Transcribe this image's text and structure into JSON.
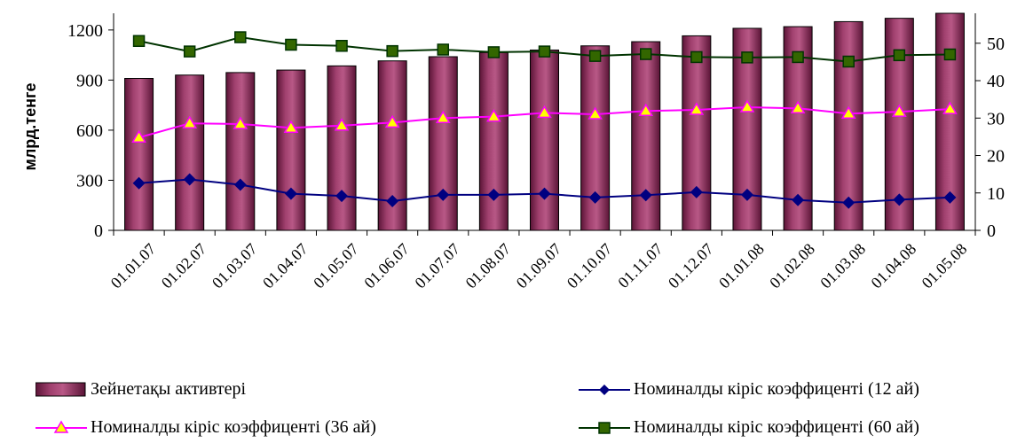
{
  "chart_data": {
    "type": "bar",
    "ylabel": "млрд.тенге",
    "categories": [
      "01.01.07",
      "01.02.07",
      "01.03.07",
      "01.04.07",
      "01.05.07",
      "01.06.07",
      "01.07.07",
      "01.08.07",
      "01.09.07",
      "01.10.07",
      "01.11.07",
      "01.12.07",
      "01.01.08",
      "01.02.08",
      "01.03.08",
      "01.04.08",
      "01.05.08"
    ],
    "ylim": [
      0,
      1300
    ],
    "yticks": [
      0,
      300,
      600,
      900,
      1200
    ],
    "y2lim": [
      0,
      58
    ],
    "y2ticks": [
      0,
      10,
      20,
      30,
      40,
      50
    ],
    "grid": false,
    "legend_position": "bottom",
    "series": [
      {
        "name": "Зейнетақы активтері",
        "type": "bar",
        "axis": "left",
        "color": "#8B2252",
        "values": [
          910,
          930,
          945,
          960,
          985,
          1015,
          1040,
          1065,
          1080,
          1105,
          1130,
          1165,
          1210,
          1220,
          1250,
          1270,
          1300
        ]
      },
      {
        "name": "Номиналды кіріс коэффиценті (12 ай)",
        "type": "line",
        "axis": "right",
        "color": "#000080",
        "marker": "diamond",
        "values": [
          12.6,
          13.6,
          12.2,
          9.8,
          9.2,
          7.8,
          9.5,
          9.5,
          9.8,
          8.8,
          9.4,
          10.2,
          9.5,
          8.1,
          7.4,
          8.2,
          8.8
        ]
      },
      {
        "name": "Номиналды кіріс коэффиценті (36 ай)",
        "type": "line",
        "axis": "right",
        "color": "#FF00FF",
        "marker": "triangle",
        "marker_fill": "#FFFF00",
        "values": [
          24.8,
          28.6,
          28.4,
          27.4,
          28.0,
          28.8,
          30.0,
          30.4,
          31.4,
          31.0,
          31.9,
          32.2,
          32.9,
          32.6,
          31.2,
          31.7,
          32.4
        ]
      },
      {
        "name": "Номиналды кіріс коэффиценті (60 ай)",
        "type": "line",
        "axis": "right",
        "color": "#003300",
        "marker": "square",
        "marker_fill": "#336600",
        "values": [
          50.6,
          47.8,
          51.6,
          49.6,
          49.3,
          47.9,
          48.3,
          47.6,
          47.8,
          46.6,
          47.1,
          46.3,
          46.2,
          46.3,
          45.1,
          46.8,
          47.0
        ]
      }
    ]
  }
}
